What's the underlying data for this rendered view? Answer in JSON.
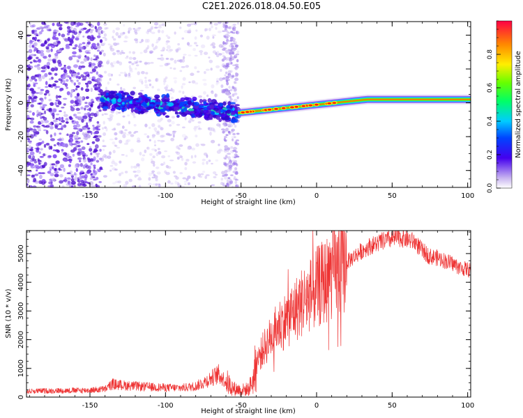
{
  "title": "C2E1.2026.018.04.50.E05",
  "colors": {
    "line": "#ee3333",
    "axis": "#000000"
  },
  "chart_data": [
    {
      "type": "heatmap",
      "xlabel": "Height of straight line (km)",
      "ylabel": "Frequency (Hz)",
      "xlim": [
        -192,
        102
      ],
      "ylim": [
        -50,
        48
      ],
      "x_ticks": [
        -150,
        -100,
        -50,
        0,
        50,
        100
      ],
      "y_ticks": [
        -40,
        -20,
        0,
        20,
        40
      ],
      "colorbar": {
        "label": "Normalized spectral amplitude",
        "range": [
          0,
          1
        ],
        "ticks": [
          0.0,
          0.2,
          0.4,
          0.6,
          0.8
        ],
        "tick_labels": [
          "0.0",
          "0.2",
          "0.4",
          "0.6",
          "0.8"
        ]
      },
      "features": [
        {
          "name": "noise-band-left",
          "x": [
            -192,
            -142
          ],
          "y": [
            -50,
            48
          ],
          "amplitude": 0.15
        },
        {
          "name": "noise-band-mid",
          "x": [
            -142,
            -52
          ],
          "y": [
            -50,
            48
          ],
          "amplitude": 0.05
        },
        {
          "name": "noise-strip",
          "x": [
            -62,
            -52
          ],
          "y": [
            -50,
            48
          ],
          "amplitude": 0.08
        },
        {
          "name": "signal-ridge-noisy",
          "x": [
            -142,
            -52
          ],
          "freq_start": 2,
          "freq_end": -6,
          "amplitude": 0.45
        },
        {
          "name": "signal-ridge-clean",
          "x": [
            -52,
            102
          ],
          "freq_start": -6,
          "freq_end": 2,
          "amplitude": 0.85
        }
      ]
    },
    {
      "type": "line",
      "xlabel": "Height of straight line (km)",
      "ylabel": "SNR (10 * v/v)",
      "xlim": [
        -192,
        102
      ],
      "ylim": [
        0,
        5800
      ],
      "x_ticks": [
        -150,
        -100,
        -50,
        0,
        50,
        100
      ],
      "y_ticks": [
        0,
        1000,
        2000,
        3000,
        4000,
        5000
      ],
      "series": [
        {
          "name": "SNR",
          "x": [
            -192,
            -180,
            -160,
            -150,
            -140,
            -135,
            -130,
            -120,
            -110,
            -100,
            -90,
            -80,
            -75,
            -70,
            -65,
            -60,
            -55,
            -50,
            -45,
            -42,
            -40,
            -35,
            -30,
            -25,
            -20,
            -15,
            -10,
            -5,
            0,
            5,
            10,
            15,
            20,
            25,
            30,
            35,
            40,
            45,
            50,
            55,
            60,
            65,
            70,
            75,
            80,
            85,
            90,
            95,
            100,
            102
          ],
          "y": [
            200,
            220,
            230,
            240,
            280,
            450,
            420,
            380,
            350,
            330,
            320,
            380,
            500,
            650,
            800,
            550,
            300,
            250,
            280,
            600,
            1200,
            1700,
            2100,
            2500,
            2700,
            3000,
            3300,
            3500,
            3800,
            4000,
            4300,
            4500,
            4700,
            4900,
            5100,
            5250,
            5350,
            5450,
            5500,
            5550,
            5500,
            5400,
            5100,
            4900,
            4850,
            4750,
            4650,
            4500,
            4450,
            4400
          ]
        }
      ]
    }
  ]
}
